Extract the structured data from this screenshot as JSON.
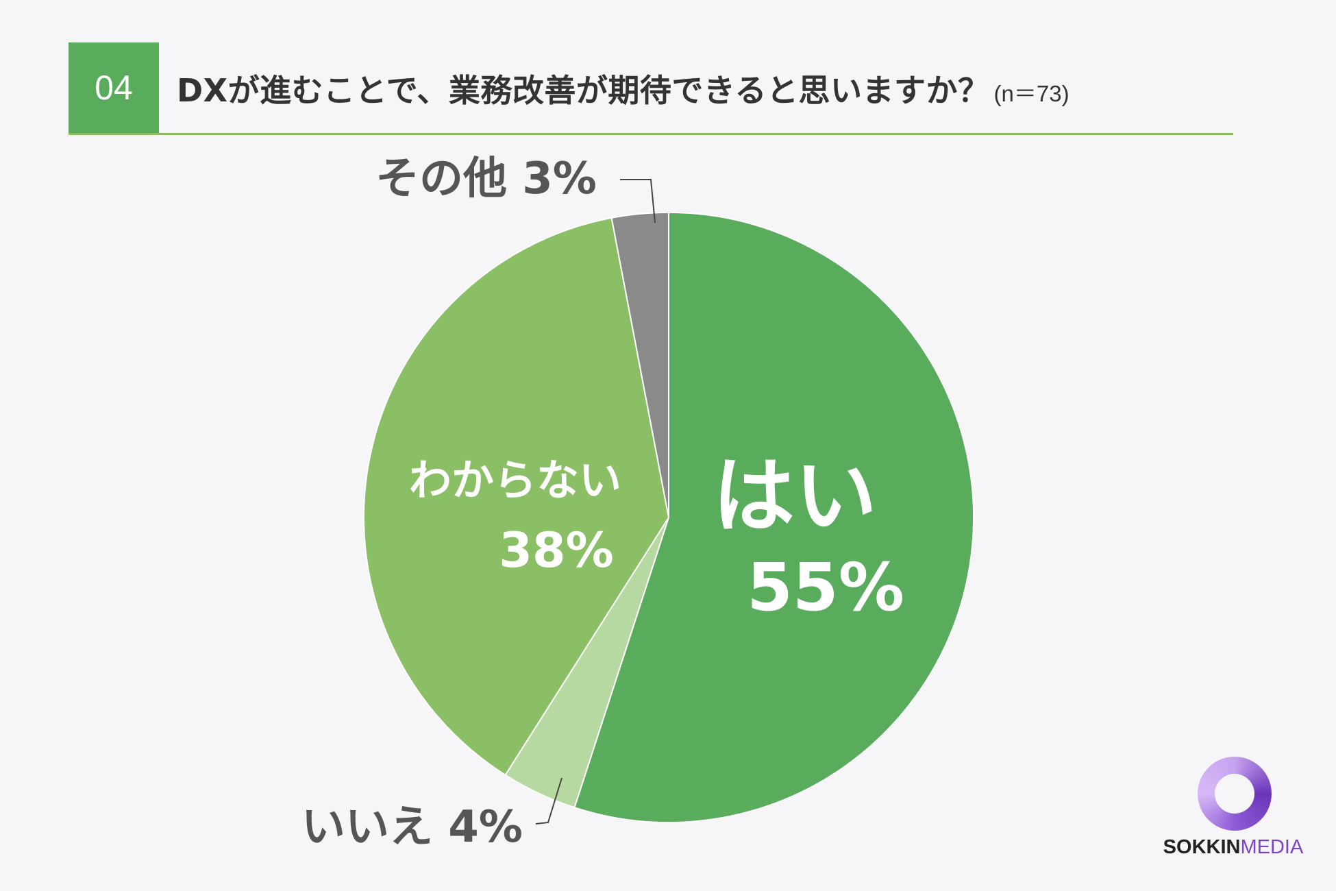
{
  "header": {
    "number": "04",
    "title": "DXが進むことで、業務改善が期待できると思いますか？",
    "sample": "(n＝73)"
  },
  "chart_data": {
    "type": "pie",
    "slices": [
      {
        "label": "はい",
        "value": 55,
        "value_label": "55%",
        "color": "#58ac5c"
      },
      {
        "label": "いいえ",
        "value": 4,
        "value_label": "4%",
        "color": "#b5d9a0"
      },
      {
        "label": "わからない",
        "value": 38,
        "value_label": "38%",
        "color": "#8bbf66"
      },
      {
        "label": "その他",
        "value": 3,
        "value_label": "3%",
        "color": "#8a8a8a"
      }
    ],
    "start": "12 o'clock",
    "direction": "clockwise"
  },
  "logo": {
    "part1": "SOKKIN",
    "part2": "MEDIA"
  }
}
